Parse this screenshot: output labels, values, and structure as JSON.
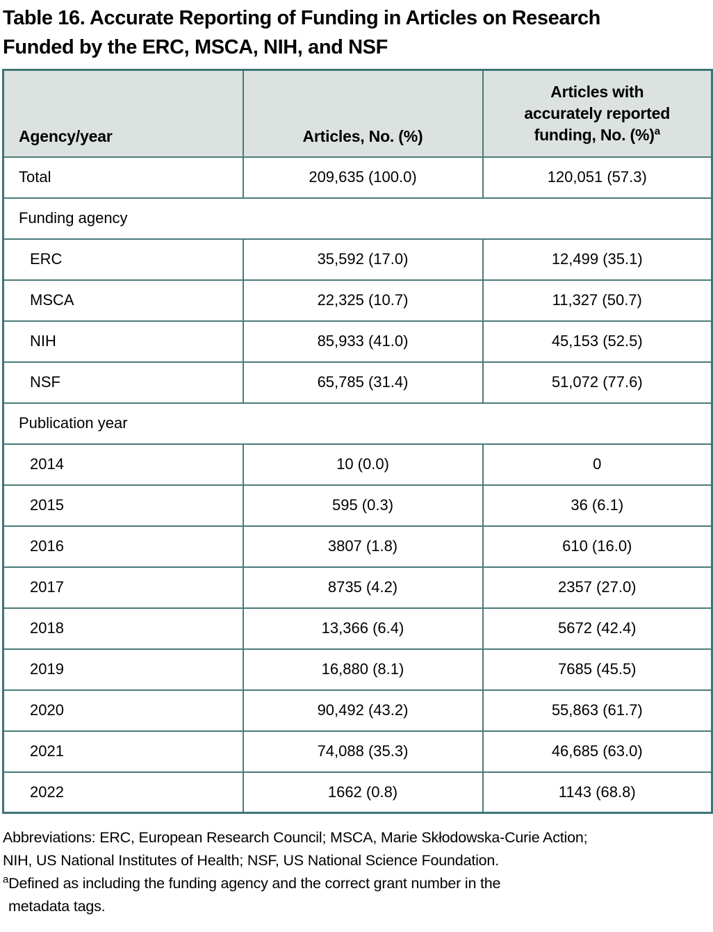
{
  "title": {
    "line1": "Table 16. Accurate Reporting of Funding in Articles on Research",
    "line2": "Funded by the ERC, MSCA, NIH, and NSF"
  },
  "colors": {
    "border_teal": "#4a7a7a",
    "outer_border": "#3d7477",
    "header_background": "#dce2e0",
    "row_background": "#ffffff",
    "text": "#000000"
  },
  "table": {
    "header": {
      "col1": "Agency/year",
      "col2": "Articles, No. (%)",
      "col3_line1": "Articles with",
      "col3_line2": "accurately reported",
      "col3_line3": "funding, No. (%)",
      "col3_footnote_marker": "a"
    },
    "rows": [
      {
        "type": "data",
        "label": "Total",
        "indent": false,
        "articles": "209,635 (100.0)",
        "accurate": "120,051 (57.3)"
      },
      {
        "type": "section",
        "label": "Funding agency"
      },
      {
        "type": "data",
        "label": "ERC",
        "indent": true,
        "articles": "35,592 (17.0)",
        "accurate": "12,499 (35.1)"
      },
      {
        "type": "data",
        "label": "MSCA",
        "indent": true,
        "articles": "22,325 (10.7)",
        "accurate": "11,327 (50.7)"
      },
      {
        "type": "data",
        "label": "NIH",
        "indent": true,
        "articles": "85,933 (41.0)",
        "accurate": "45,153 (52.5)"
      },
      {
        "type": "data",
        "label": "NSF",
        "indent": true,
        "articles": "65,785 (31.4)",
        "accurate": "51,072 (77.6)"
      },
      {
        "type": "section",
        "label": "Publication year"
      },
      {
        "type": "data",
        "label": "2014",
        "indent": true,
        "articles": "10 (0.0)",
        "accurate": "0"
      },
      {
        "type": "data",
        "label": "2015",
        "indent": true,
        "articles": "595 (0.3)",
        "accurate": "36 (6.1)"
      },
      {
        "type": "data",
        "label": "2016",
        "indent": true,
        "articles": "3807 (1.8)",
        "accurate": "610 (16.0)"
      },
      {
        "type": "data",
        "label": "2017",
        "indent": true,
        "articles": "8735 (4.2)",
        "accurate": "2357 (27.0)"
      },
      {
        "type": "data",
        "label": "2018",
        "indent": true,
        "articles": "13,366 (6.4)",
        "accurate": "5672 (42.4)"
      },
      {
        "type": "data",
        "label": "2019",
        "indent": true,
        "articles": "16,880 (8.1)",
        "accurate": "7685 (45.5)"
      },
      {
        "type": "data",
        "label": "2020",
        "indent": true,
        "articles": "90,492 (43.2)",
        "accurate": "55,863 (61.7)"
      },
      {
        "type": "data",
        "label": "2021",
        "indent": true,
        "articles": "74,088 (35.3)",
        "accurate": "46,685 (63.0)"
      },
      {
        "type": "data",
        "label": "2022",
        "indent": true,
        "articles": "1662 (0.8)",
        "accurate": "1143 (68.8)"
      }
    ]
  },
  "footnotes": {
    "abbreviations_line1": "Abbreviations: ERC, European Research Council; MSCA, Marie Skłodowska-Curie Action;",
    "abbreviations_line2": "NIH, US National Institutes of Health; NSF, US National Science Foundation.",
    "note_a_marker": "a",
    "note_a_line1": "Defined as including the funding agency and the correct grant number in the",
    "note_a_line2": "metadata tags."
  }
}
